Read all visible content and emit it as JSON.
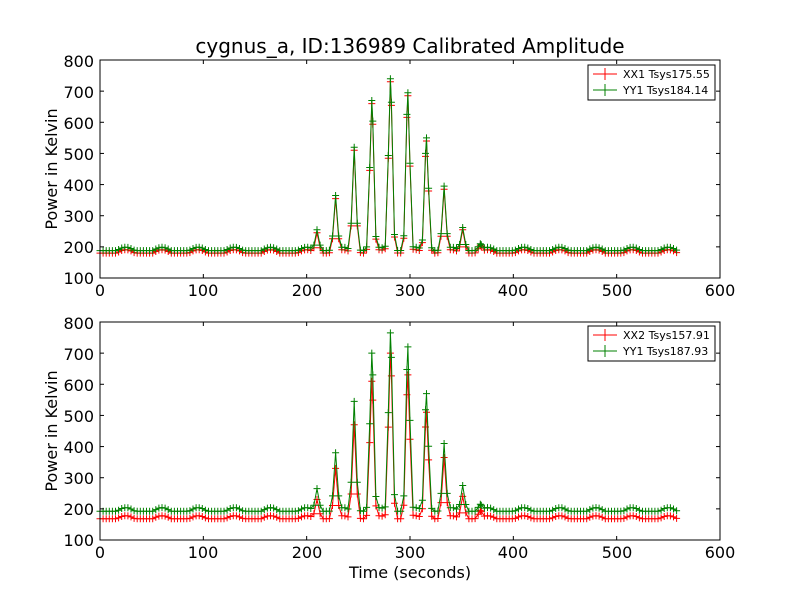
{
  "chart_data": [
    {
      "type": "line",
      "title": "cygnus_a, ID:136989 Calibrated Amplitude",
      "xlabel": "",
      "ylabel": "Power in Kelvin",
      "xlim": [
        0,
        600
      ],
      "ylim": [
        100,
        800
      ],
      "xticks": [
        "0",
        "100",
        "200",
        "300",
        "400",
        "500",
        "600"
      ],
      "yticks": [
        "100",
        "200",
        "300",
        "400",
        "500",
        "600",
        "700",
        "800"
      ],
      "legend_position": "top-right",
      "series": [
        {
          "name": "XX1 Tsys175.55",
          "color": "#ff0000",
          "baseline": 180,
          "ripple": 11,
          "ripple_period": 35,
          "x_end": 560,
          "x_step": 3,
          "peaks": [
            [
              210,
              245
            ],
            [
              228,
              355
            ],
            [
              246,
              510
            ],
            [
              263,
              660
            ],
            [
              281,
              730
            ],
            [
              298,
              685
            ],
            [
              316,
              540
            ],
            [
              333,
              385
            ],
            [
              351,
              255
            ],
            [
              368,
              205
            ]
          ]
        },
        {
          "name": "YY1 Tsys184.14",
          "color": "#008000",
          "baseline": 188,
          "ripple": 11,
          "ripple_period": 35,
          "x_end": 560,
          "x_step": 3,
          "peaks": [
            [
              210,
              255
            ],
            [
              228,
              365
            ],
            [
              246,
              520
            ],
            [
              263,
              670
            ],
            [
              281,
              740
            ],
            [
              298,
              695
            ],
            [
              316,
              550
            ],
            [
              333,
              395
            ],
            [
              351,
              262
            ],
            [
              368,
              210
            ]
          ]
        }
      ]
    },
    {
      "type": "line",
      "title": "",
      "xlabel": "Time (seconds)",
      "ylabel": "Power in Kelvin",
      "xlim": [
        0,
        600
      ],
      "ylim": [
        100,
        800
      ],
      "xticks": [
        "0",
        "100",
        "200",
        "300",
        "400",
        "500",
        "600"
      ],
      "yticks": [
        "100",
        "200",
        "300",
        "400",
        "500",
        "600",
        "700",
        "800"
      ],
      "legend_position": "top-right",
      "series": [
        {
          "name": "XX2 Tsys157.91",
          "color": "#ff0000",
          "baseline": 168,
          "ripple": 10,
          "ripple_period": 35,
          "x_end": 560,
          "x_step": 3,
          "peaks": [
            [
              210,
              230
            ],
            [
              228,
              330
            ],
            [
              246,
              470
            ],
            [
              263,
              610
            ],
            [
              281,
              700
            ],
            [
              298,
              630
            ],
            [
              316,
              510
            ],
            [
              333,
              365
            ],
            [
              351,
              240
            ],
            [
              368,
              195
            ]
          ]
        },
        {
          "name": "YY1 Tsys187.93",
          "color": "#008000",
          "baseline": 192,
          "ripple": 12,
          "ripple_period": 35,
          "x_end": 560,
          "x_step": 3,
          "peaks": [
            [
              210,
              265
            ],
            [
              228,
              380
            ],
            [
              246,
              545
            ],
            [
              263,
              700
            ],
            [
              281,
              765
            ],
            [
              298,
              720
            ],
            [
              316,
              570
            ],
            [
              333,
              410
            ],
            [
              351,
              275
            ],
            [
              368,
              215
            ]
          ]
        }
      ]
    }
  ]
}
